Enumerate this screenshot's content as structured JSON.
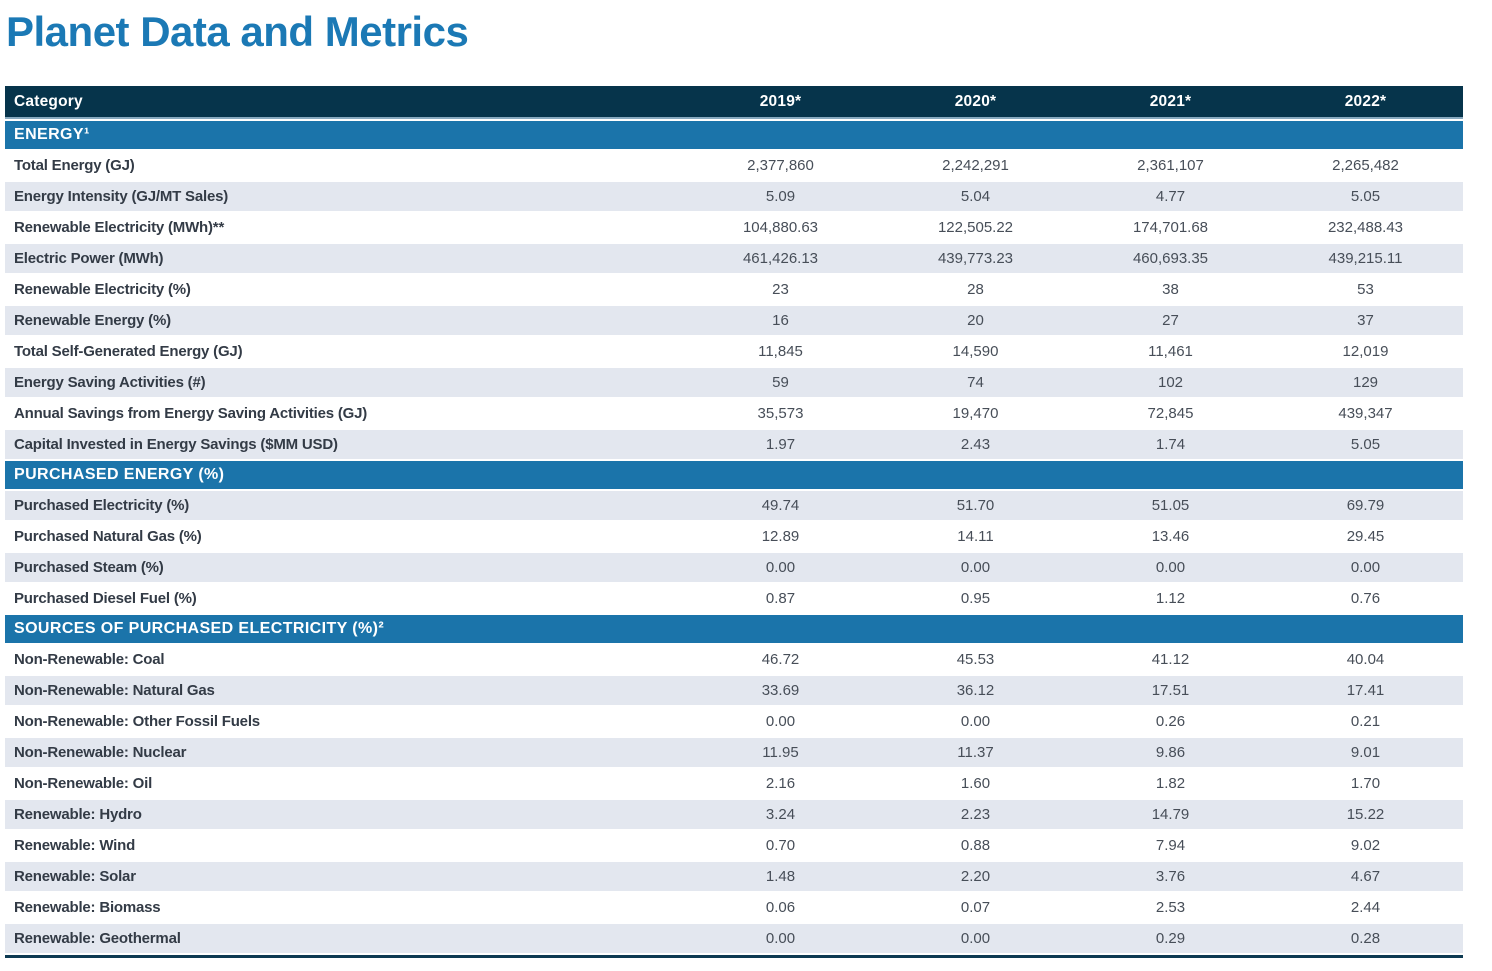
{
  "title": "Planet Data and Metrics",
  "colors": {
    "title_blue": "#1b79b5",
    "header_bg": "#06344b",
    "section_bg": "#1b74aa",
    "row_shaded": "#e3e7ef",
    "row_white": "#ffffff",
    "bottom_border": "#0d3a52"
  },
  "table": {
    "columns": [
      "Category",
      "2019*",
      "2020*",
      "2021*",
      "2022*"
    ],
    "sections": [
      {
        "label": "ENERGY¹",
        "zebra_start_shaded": false,
        "rows": [
          {
            "label": "Total Energy (GJ)",
            "values": [
              "2,377,860",
              "2,242,291",
              "2,361,107",
              "2,265,482"
            ]
          },
          {
            "label": "Energy Intensity (GJ/MT Sales)",
            "values": [
              "5.09",
              "5.04",
              "4.77",
              "5.05"
            ]
          },
          {
            "label": "Renewable Electricity (MWh)**",
            "values": [
              "104,880.63",
              "122,505.22",
              "174,701.68",
              "232,488.43"
            ]
          },
          {
            "label": "Electric Power (MWh)",
            "values": [
              "461,426.13",
              "439,773.23",
              "460,693.35",
              "439,215.11"
            ]
          },
          {
            "label": "Renewable Electricity (%)",
            "values": [
              "23",
              "28",
              "38",
              "53"
            ]
          },
          {
            "label": "Renewable Energy (%)",
            "values": [
              "16",
              "20",
              "27",
              "37"
            ]
          },
          {
            "label": "Total Self-Generated Energy (GJ)",
            "values": [
              "11,845",
              "14,590",
              "11,461",
              "12,019"
            ]
          },
          {
            "label": "Energy Saving Activities (#)",
            "values": [
              "59",
              "74",
              "102",
              "129"
            ]
          },
          {
            "label": "Annual Savings from Energy Saving Activities (GJ)",
            "values": [
              "35,573",
              "19,470",
              "72,845",
              "439,347"
            ]
          },
          {
            "label": "Capital Invested in Energy Savings ($MM USD)",
            "values": [
              "1.97",
              "2.43",
              "1.74",
              "5.05"
            ]
          }
        ]
      },
      {
        "label": "PURCHASED ENERGY (%)",
        "zebra_start_shaded": true,
        "rows": [
          {
            "label": "Purchased Electricity (%)",
            "values": [
              "49.74",
              "51.70",
              "51.05",
              "69.79"
            ]
          },
          {
            "label": "Purchased Natural Gas (%)",
            "values": [
              "12.89",
              "14.11",
              "13.46",
              "29.45"
            ]
          },
          {
            "label": "Purchased Steam (%)",
            "values": [
              "0.00",
              "0.00",
              "0.00",
              "0.00"
            ]
          },
          {
            "label": "Purchased Diesel Fuel (%)",
            "values": [
              "0.87",
              "0.95",
              "1.12",
              "0.76"
            ]
          }
        ]
      },
      {
        "label": "SOURCES OF PURCHASED ELECTRICITY (%)²",
        "zebra_start_shaded": false,
        "rows": [
          {
            "label": "Non-Renewable: Coal",
            "values": [
              "46.72",
              "45.53",
              "41.12",
              "40.04"
            ]
          },
          {
            "label": "Non-Renewable: Natural Gas",
            "values": [
              "33.69",
              "36.12",
              "17.51",
              "17.41"
            ]
          },
          {
            "label": "Non-Renewable: Other Fossil Fuels",
            "values": [
              "0.00",
              "0.00",
              "0.26",
              "0.21"
            ]
          },
          {
            "label": "Non-Renewable: Nuclear",
            "values": [
              "11.95",
              "11.37",
              "9.86",
              "9.01"
            ]
          },
          {
            "label": "Non-Renewable: Oil",
            "values": [
              "2.16",
              "1.60",
              "1.82",
              "1.70"
            ]
          },
          {
            "label": "Renewable: Hydro",
            "values": [
              "3.24",
              "2.23",
              "14.79",
              "15.22"
            ]
          },
          {
            "label": "Renewable: Wind",
            "values": [
              "0.70",
              "0.88",
              "7.94",
              "9.02"
            ]
          },
          {
            "label": "Renewable: Solar",
            "values": [
              "1.48",
              "2.20",
              "3.76",
              "4.67"
            ]
          },
          {
            "label": "Renewable: Biomass",
            "values": [
              "0.06",
              "0.07",
              "2.53",
              "2.44"
            ]
          },
          {
            "label": "Renewable: Geothermal",
            "values": [
              "0.00",
              "0.00",
              "0.29",
              "0.28"
            ]
          }
        ]
      }
    ]
  }
}
